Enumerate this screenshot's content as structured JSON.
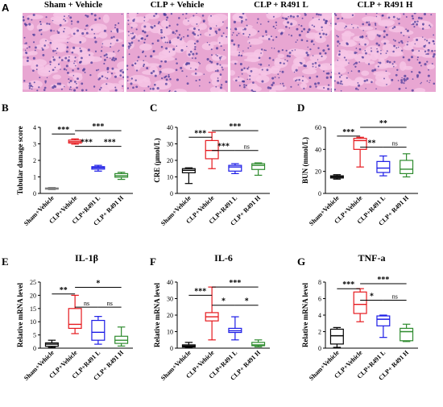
{
  "panel_a": {
    "letter": "A",
    "titles": [
      "Sham + Vehicle",
      "CLP + Vehicle",
      "CLP + R491 L",
      "CLP + R491 H"
    ],
    "tissue_colors": {
      "background": "#e8a6d2",
      "tubule": "#f6c6e6",
      "nuclei": "#4a3a9a"
    }
  },
  "chart_data": [
    {
      "id": "B",
      "type": "box",
      "ylabel": "Tubular damage score",
      "ylim": [
        0,
        4
      ],
      "yticks": [
        0,
        1,
        2,
        3,
        4
      ],
      "categories": [
        "Sham+Vehicle",
        "CLP+Vehicle",
        "CLP+R491 L",
        "CLP+ R491 H"
      ],
      "colors": [
        "#7f7f7f",
        "#e6191e",
        "#1c1ce6",
        "#2e8b2e"
      ],
      "boxes": [
        {
          "min": 0.23,
          "q1": 0.26,
          "median": 0.29,
          "q3": 0.33,
          "max": 0.36
        },
        {
          "min": 2.98,
          "q1": 3.05,
          "median": 3.13,
          "q3": 3.23,
          "max": 3.3
        },
        {
          "min": 1.35,
          "q1": 1.47,
          "median": 1.55,
          "q3": 1.62,
          "max": 1.7
        },
        {
          "min": 0.85,
          "q1": 0.98,
          "median": 1.07,
          "q3": 1.2,
          "max": 1.28
        }
      ],
      "sig": [
        {
          "a": 0,
          "b": 1,
          "label": "***",
          "y": 3.6
        },
        {
          "a": 1,
          "b": 2,
          "label": "***",
          "y": 2.85
        },
        {
          "a": 1,
          "b": 3,
          "label": "***",
          "y": 3.8
        },
        {
          "a": 2,
          "b": 3,
          "label": "***",
          "y": 2.85
        }
      ]
    },
    {
      "id": "C",
      "type": "box",
      "ylabel": "CRE (μmol/L)",
      "ylim": [
        0,
        40
      ],
      "yticks": [
        0,
        10,
        20,
        30,
        40
      ],
      "categories": [
        "Sham+Vehicle",
        "CLP+Vehicle",
        "CLP+R491 L",
        "CLP+ R491 H"
      ],
      "colors": [
        "#000000",
        "#e6191e",
        "#1c1ce6",
        "#2e8b2e"
      ],
      "boxes": [
        {
          "min": 6,
          "q1": 12.5,
          "median": 14,
          "q3": 15,
          "max": 15.5
        },
        {
          "min": 15,
          "q1": 21,
          "median": 26,
          "q3": 32,
          "max": 37
        },
        {
          "min": 12,
          "q1": 13.5,
          "median": 16,
          "q3": 17,
          "max": 18
        },
        {
          "min": 11,
          "q1": 14.5,
          "median": 17,
          "q3": 18,
          "max": 18.5
        }
      ],
      "sig": [
        {
          "a": 0,
          "b": 1,
          "label": "***",
          "y": 34
        },
        {
          "a": 1,
          "b": 2,
          "label": "***",
          "y": 26
        },
        {
          "a": 2,
          "b": 3,
          "label": "ns",
          "y": 26
        },
        {
          "a": 1,
          "b": 3,
          "label": "***",
          "y": 38
        }
      ]
    },
    {
      "id": "D",
      "type": "box",
      "ylabel": "BUN (mmol/L)",
      "ylim": [
        0,
        60
      ],
      "yticks": [
        0,
        20,
        40,
        60
      ],
      "categories": [
        "Sham+Vehicle",
        "CLP+Vehicle",
        "CLP+R491 L",
        "CLP+ R491 H"
      ],
      "colors": [
        "#000000",
        "#e6191e",
        "#1c1ce6",
        "#2e8b2e"
      ],
      "boxes": [
        {
          "min": 13,
          "q1": 14,
          "median": 15,
          "q3": 16,
          "max": 17
        },
        {
          "min": 24,
          "q1": 40,
          "median": 48,
          "q3": 50,
          "max": 51
        },
        {
          "min": 16,
          "q1": 19,
          "median": 23,
          "q3": 29,
          "max": 34
        },
        {
          "min": 15,
          "q1": 18,
          "median": 22,
          "q3": 30,
          "max": 36
        }
      ],
      "sig": [
        {
          "a": 0,
          "b": 1,
          "label": "***",
          "y": 52
        },
        {
          "a": 1,
          "b": 2,
          "label": "**",
          "y": 42
        },
        {
          "a": 2,
          "b": 3,
          "label": "ns",
          "y": 42
        },
        {
          "a": 1,
          "b": 3,
          "label": "**",
          "y": 60
        }
      ]
    },
    {
      "id": "E",
      "type": "box",
      "title": "IL-1β",
      "ylabel": "Relative mRNA level",
      "ylim": [
        0,
        25
      ],
      "yticks": [
        0,
        5,
        10,
        15,
        20,
        25
      ],
      "categories": [
        "Sham+Vehicle",
        "CLP+Vehicle",
        "CLP+R491 L",
        "CLP+ R491 H"
      ],
      "colors": [
        "#000000",
        "#e6191e",
        "#1c1ce6",
        "#2e8b2e"
      ],
      "boxes": [
        {
          "min": 0.3,
          "q1": 0.7,
          "median": 1.5,
          "q3": 2,
          "max": 3
        },
        {
          "min": 5.5,
          "q1": 7.5,
          "median": 9,
          "q3": 15,
          "max": 20
        },
        {
          "min": 1.5,
          "q1": 3,
          "median": 6,
          "q3": 10.5,
          "max": 12
        },
        {
          "min": 0.8,
          "q1": 1.8,
          "median": 3,
          "q3": 4.5,
          "max": 8
        }
      ],
      "sig": [
        {
          "a": 0,
          "b": 1,
          "label": "**",
          "y": 20.5
        },
        {
          "a": 1,
          "b": 2,
          "label": "ns",
          "y": 15.5
        },
        {
          "a": 2,
          "b": 3,
          "label": "ns",
          "y": 15.5
        },
        {
          "a": 1,
          "b": 3,
          "label": "*",
          "y": 23
        }
      ]
    },
    {
      "id": "F",
      "type": "box",
      "title": "IL-6",
      "ylabel": "Relative mRNA level",
      "ylim": [
        0,
        40
      ],
      "yticks": [
        0,
        10,
        20,
        30,
        40
      ],
      "categories": [
        "Sham+Vehicle",
        "CLP+Vehicle",
        "CLP+R491 L",
        "CLP+ R491 H"
      ],
      "colors": [
        "#000000",
        "#e6191e",
        "#1c1ce6",
        "#2e8b2e"
      ],
      "boxes": [
        {
          "min": 0.3,
          "q1": 0.7,
          "median": 1.3,
          "q3": 2,
          "max": 3.5
        },
        {
          "min": 5,
          "q1": 16.5,
          "median": 19,
          "q3": 21.5,
          "max": 37
        },
        {
          "min": 5,
          "q1": 9.5,
          "median": 10.5,
          "q3": 12,
          "max": 19
        },
        {
          "min": 0.8,
          "q1": 1.5,
          "median": 2,
          "q3": 3.5,
          "max": 5
        }
      ],
      "sig": [
        {
          "a": 0,
          "b": 1,
          "label": "***",
          "y": 32
        },
        {
          "a": 1,
          "b": 2,
          "label": "*",
          "y": 26
        },
        {
          "a": 2,
          "b": 3,
          "label": "*",
          "y": 26
        },
        {
          "a": 1,
          "b": 3,
          "label": "***",
          "y": 37
        }
      ]
    },
    {
      "id": "G",
      "type": "box",
      "title": "TNF-a",
      "ylabel": "Relative mRNA level",
      "ylim": [
        0,
        8
      ],
      "yticks": [
        0,
        2,
        4,
        6,
        8
      ],
      "categories": [
        "Sham+Vehicle",
        "CLP+Vehicle",
        "CLP+R491 L",
        "CLP+ R491 H"
      ],
      "colors": [
        "#000000",
        "#e6191e",
        "#1c1ce6",
        "#2e8b2e"
      ],
      "boxes": [
        {
          "min": 0.1,
          "q1": 0.5,
          "median": 1.5,
          "q3": 2.3,
          "max": 2.5
        },
        {
          "min": 3.2,
          "q1": 4.2,
          "median": 5.3,
          "q3": 6.8,
          "max": 7.2
        },
        {
          "min": 1.3,
          "q1": 2.7,
          "median": 3.5,
          "q3": 3.9,
          "max": 4
        },
        {
          "min": 0.8,
          "q1": 0.9,
          "median": 2,
          "q3": 2.4,
          "max": 2.9
        }
      ],
      "sig": [
        {
          "a": 0,
          "b": 1,
          "label": "***",
          "y": 7.2
        },
        {
          "a": 1,
          "b": 2,
          "label": "*",
          "y": 5.8
        },
        {
          "a": 2,
          "b": 3,
          "label": "ns",
          "y": 5.8
        },
        {
          "a": 1,
          "b": 3,
          "label": "***",
          "y": 7.8
        }
      ]
    }
  ]
}
